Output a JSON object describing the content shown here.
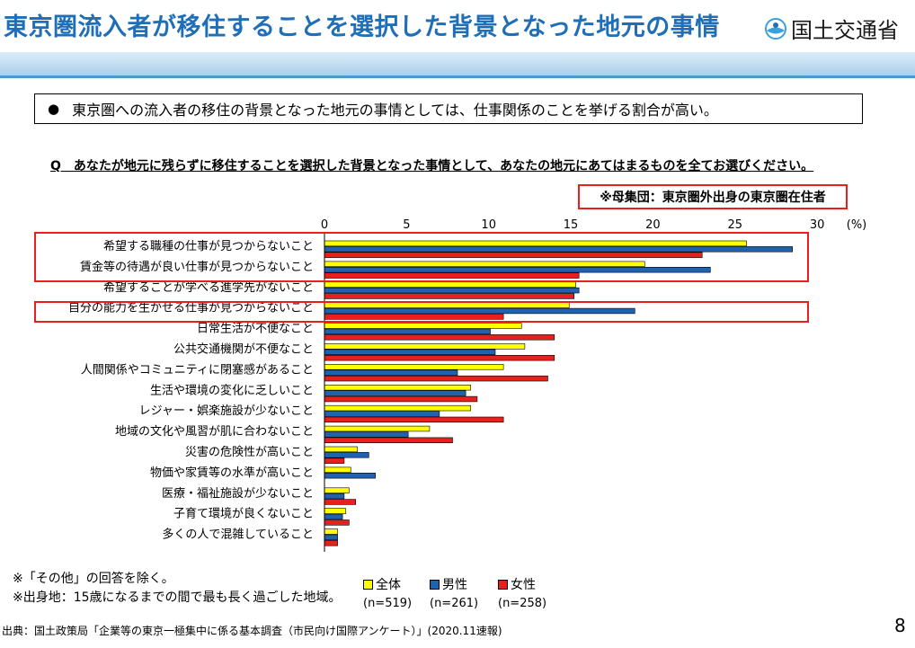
{
  "title": "東京圏流入者が移住することを選択した背景となった地元の事情",
  "ministry_logo_text": "国土交通省",
  "summary": "東京圏への流入者の移住の背景となった地元の事情としては、仕事関係のことを挙げる割合が高い。",
  "question": "Q　あなたが地元に残らずに移住することを選択した背景となった事情として、あなたの地元にあてはまるものを全てお選びください。",
  "population_note": "※母集団：東京圏外出身の東京圏在住者",
  "notes": [
    "※「その他」の回答を除く。",
    "※出身地：15歳になるまでの間で最も長く過ごした地域。"
  ],
  "source": "出典：国土政策局「企業等の東京一極集中に係る基本調査（市民向け国際アンケート）」(2020.11速報)",
  "page_number": "8",
  "colors": {
    "title": "#1f6fb8",
    "all": "#ffff00",
    "male": "#1f62b0",
    "female": "#e8201d",
    "highlight": "#e8201d"
  },
  "legend": [
    {
      "label": "全体",
      "n": "(n=519)",
      "color": "#ffff00"
    },
    {
      "label": "男性",
      "n": "(n=261)",
      "color": "#1f62b0"
    },
    {
      "label": "女性",
      "n": "(n=258)",
      "color": "#e8201d"
    }
  ],
  "chart_data": {
    "type": "bar",
    "orientation": "horizontal",
    "unit_label": "(%)",
    "xlim": [
      0,
      30
    ],
    "ticks": [
      0,
      5,
      10,
      15,
      20,
      25,
      30
    ],
    "grid": false,
    "legend_position": "bottom",
    "categories": [
      "希望する職種の仕事が見つからないこと",
      "賃金等の待遇が良い仕事が見つからないこと",
      "希望することが学べる進学先がないこと",
      "自分の能力を生かせる仕事が見つからないこと",
      "日常生活が不便なこと",
      "公共交通機関が不便なこと",
      "人間関係やコミュニティに閉塞感があること",
      "生活や環境の変化に乏しいこと",
      "レジャー・娯楽施設が少ないこと",
      "地域の文化や風習が肌に合わないこと",
      "災害の危険性が高いこと",
      "物価や家賃等の水準が高いこと",
      "医療・福祉施設が少ないこと",
      "子育て環境が良くないこと",
      "多くの人で混雑していること"
    ],
    "series": [
      {
        "name": "全体",
        "values": [
          25.7,
          19.5,
          15.3,
          14.9,
          12.0,
          12.2,
          10.9,
          8.9,
          8.9,
          6.4,
          2.0,
          1.6,
          1.5,
          1.3,
          0.8
        ]
      },
      {
        "name": "男性",
        "values": [
          28.5,
          23.5,
          15.5,
          18.9,
          10.1,
          10.4,
          8.1,
          8.6,
          7.0,
          5.1,
          2.7,
          3.1,
          1.2,
          1.1,
          0.8
        ]
      },
      {
        "name": "女性",
        "values": [
          23.0,
          15.5,
          15.2,
          10.9,
          14.0,
          14.0,
          13.6,
          9.3,
          10.9,
          7.8,
          1.2,
          0.0,
          1.9,
          1.5,
          0.8
        ]
      }
    ],
    "highlighted_categories": [
      "希望する職種の仕事が見つからないこと",
      "賃金等の待遇が良い仕事が見つからないこと",
      "自分の能力を生かせる仕事が見つからないこと"
    ]
  }
}
